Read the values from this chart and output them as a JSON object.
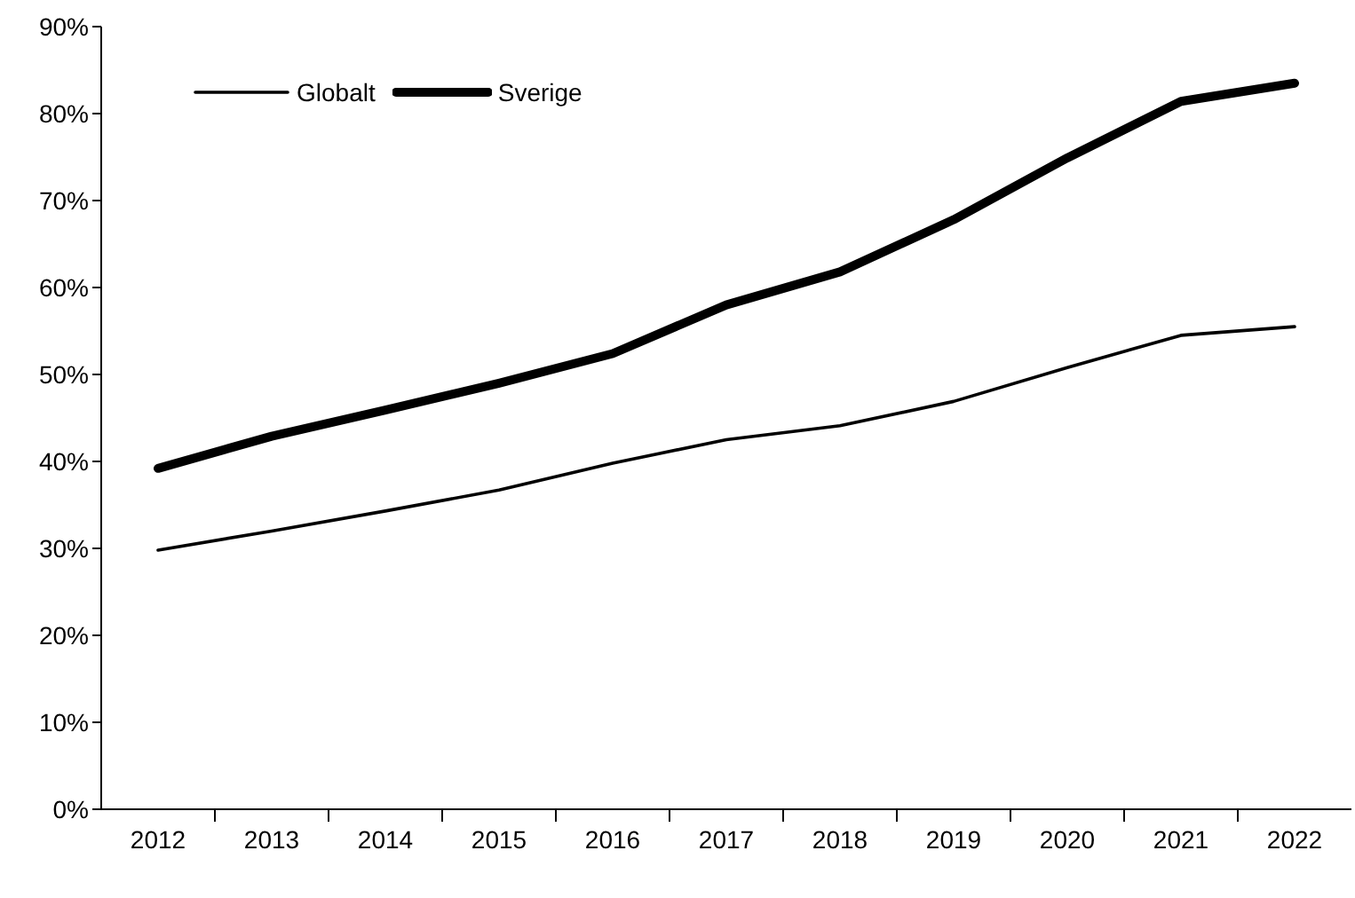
{
  "chart_data": {
    "type": "line",
    "categories": [
      "2012",
      "2013",
      "2014",
      "2015",
      "2016",
      "2017",
      "2018",
      "2019",
      "2020",
      "2021",
      "2022"
    ],
    "series": [
      {
        "name": "Globalt",
        "color": "#000000",
        "values": [
          29.8,
          32.0,
          34.3,
          36.7,
          39.8,
          42.5,
          44.1,
          46.9,
          50.8,
          54.5,
          55.5
        ]
      },
      {
        "name": "Sverige",
        "color": "#000000",
        "values": [
          39.2,
          42.9,
          45.9,
          49.0,
          52.4,
          58.0,
          61.8,
          67.8,
          74.9,
          81.4,
          83.5
        ]
      }
    ],
    "ylim": [
      0,
      90
    ],
    "yticks": [
      {
        "value": 0,
        "label": "0%"
      },
      {
        "value": 10,
        "label": "10%"
      },
      {
        "value": 20,
        "label": "20%"
      },
      {
        "value": 30,
        "label": "30%"
      },
      {
        "value": 40,
        "label": "40%"
      },
      {
        "value": 50,
        "label": "50%"
      },
      {
        "value": 60,
        "label": "60%"
      },
      {
        "value": 70,
        "label": "70%"
      },
      {
        "value": 80,
        "label": "80%"
      },
      {
        "value": 90,
        "label": "90%"
      }
    ],
    "grid": false,
    "legend": "top left",
    "marker": "none",
    "line_style": "solid"
  }
}
